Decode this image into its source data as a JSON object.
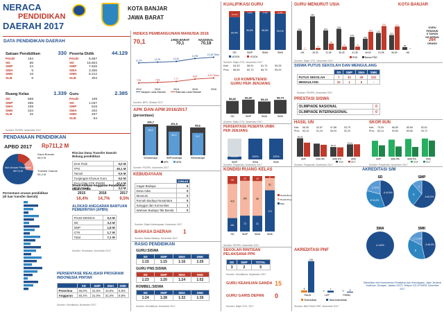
{
  "header": {
    "title_line1": "NERACA",
    "title_line2": "PENDIDIKAN",
    "title_line3": "DAERAH 2017",
    "region_line1": "KOTA BANJAR",
    "region_line2": "JAWA BARAT"
  },
  "colors": {
    "red": "#c0392b",
    "blue": "#1f4e8c",
    "dark": "#3d3d3d",
    "orange": "#e67e22",
    "light_blue": "#5b9bd5"
  },
  "data_pendidikan": {
    "title": "DATA PENDIDIKAN DAERAH",
    "satuan": {
      "label": "Satuan Pendidikan",
      "total": "330",
      "items": [
        {
          "k": "PAUD",
          "v": "194"
        },
        {
          "k": "SD",
          "v": "66"
        },
        {
          "k": "SMP",
          "v": "24"
        },
        {
          "k": "SMA",
          "v": "5"
        },
        {
          "k": "SMK",
          "v": "16"
        },
        {
          "k": "SLB",
          "v": "6"
        }
      ]
    },
    "peserta": {
      "label": "Peserta Didik",
      "total": "44.129",
      "items": [
        {
          "k": "PAUD",
          "v": "8.657"
        },
        {
          "k": "SD",
          "v": "15.604"
        },
        {
          "k": "SMP",
          "v": "7.626"
        },
        {
          "k": "SMA",
          "v": "3.306"
        },
        {
          "k": "SMK",
          "v": "8.212"
        },
        {
          "k": "SLB",
          "v": "304"
        }
      ]
    },
    "ruang": {
      "label": "Ruang Kelas",
      "total": "1.339",
      "items": [
        {
          "k": "SD",
          "v": "669"
        },
        {
          "k": "SMP",
          "v": "295"
        },
        {
          "k": "SMA",
          "v": "109"
        },
        {
          "k": "SMK",
          "v": "234"
        },
        {
          "k": "SLB",
          "v": "32"
        }
      ]
    },
    "guru": {
      "label": "Guru",
      "total": "2.385",
      "items": [
        {
          "k": "PAUD",
          "v": "109"
        },
        {
          "k": "SD",
          "v": "1.037"
        },
        {
          "k": "SMP",
          "v": "519"
        },
        {
          "k": "SMA",
          "v": "202"
        },
        {
          "k": "SMK",
          "v": "407"
        },
        {
          "k": "SLB",
          "v": "64"
        }
      ]
    },
    "source": "Sumber: PDSPK, November 2017"
  },
  "pendanaan": {
    "title": "PENDANAAN PENDIDIKAN",
    "apbd_label": "APBD 2017",
    "apbd_value": "Rp711,2 M",
    "donut_center": "Non Urusan Pendidikan",
    "donut_center_val": "557,9 M",
    "dana_bosnas_label": "Dana Bosnas",
    "dana_bosnas_val": "58,9 M",
    "transfer_label": "Transfer Daerah",
    "transfer_val": "94,4 M",
    "rincian_title": "Rincian Dana Transfer Daerah Bidang pendidikan",
    "rincian": [
      {
        "k": "DAK Fisik",
        "v": "0,0 M"
      },
      {
        "k": "TPG",
        "v": "40,1 M"
      },
      {
        "k": "Tamsil",
        "v": "0,5 M"
      },
      {
        "k": "Tunjangan Khusus Guru",
        "v": "0,0 M"
      },
      {
        "k": "DAU (Gaji GTK PNSD)",
        "v": "47,4 M"
      },
      {
        "k": "BOP PAUD",
        "v": "3,3 M"
      }
    ],
    "trend_title": "Trend Alokasi Anggaran Pendidikan dalam APBD",
    "trend_years": [
      "2015",
      "2016",
      "2017"
    ],
    "trend_vals": [
      "16,4%",
      "14,7%",
      "9,5%"
    ],
    "bantuan_title": "ALOKASI ANGGARAN BANTUAN PEMERINTAH (APBN)",
    "bantuan": [
      {
        "k": "PAUD-DIKMAS",
        "v": "0,3 M"
      },
      {
        "k": "SD",
        "v": "3,3 M"
      },
      {
        "k": "SMP",
        "v": "1,8 M"
      },
      {
        "k": "GTK",
        "v": "1,7 M"
      },
      {
        "k": "Total",
        "v": "7,1 M"
      }
    ],
    "persentase_title": "Persentase urusan pendidikan (di luar transfer daerah)",
    "source": "Sumber: Kemenkeu, November 2017"
  },
  "pip": {
    "title": "PERSENTASE REALISASI PROGRAM INDONESIA PINTAR",
    "cols": [
      "SD",
      "SMP",
      "SMA",
      "SMK"
    ],
    "rows": [
      {
        "k": "Penerima",
        "v": [
          "45,0%",
          "31,0%",
          "10,0%",
          "5,6%"
        ]
      },
      {
        "k": "Anggaran",
        "v": [
          "40,4%",
          "31,0%",
          "31,0%",
          "8,8%"
        ]
      }
    ],
    "source": "Sumber: Kemdikbud, November 2017"
  },
  "ipm": {
    "title": "INDEKS PEMBANGUNAN MANUSIA 2016",
    "value": "70,1",
    "jabar_label": "JAWA BARAT",
    "jabar_val": "70,1",
    "nasional_label": "NASIONAL",
    "nasional_val": "70,18",
    "years": [
      "2012",
      "2013",
      "2014",
      "2015",
      "2016"
    ],
    "hls": [
      12.15,
      12.29,
      12.42,
      12.95,
      13.18
    ],
    "hls_labels": [
      "12,15",
      "12,29",
      "12,42",
      "12,95",
      "13,18 Tahun"
    ],
    "rls": [
      7.59,
      7.66,
      7.77,
      8.06,
      8.19
    ],
    "rls_labels": [
      "7,59",
      "7,66",
      "7,77",
      "8,06",
      "8,19 Tahun"
    ],
    "legend_hls": "Harapan Lama Sekolah",
    "legend_rls": "Rata-rata Lama Sekolah",
    "source": "Sumber: BPS, Oktober 2017"
  },
  "apk": {
    "title": "APK DAN APM 2016/2017",
    "subtitle": "(persentase)",
    "cats": [
      "SD/sederajat",
      "SMP/sederajat",
      "SM/sederajat"
    ],
    "apk": [
      106.7,
      101.6,
      95.6
    ],
    "apm": [
      98.2,
      81.2,
      76.7
    ],
    "apk_labels": [
      "106,7",
      "101,6",
      "95,6"
    ],
    "apm_labels": [
      "98,2",
      "81,2",
      "76,7"
    ],
    "legend_apk": "APK",
    "legend_apm": "APM",
    "source": "Sumber: PDSPK, November 2017"
  },
  "kebudayaan": {
    "title": "KEBUDAYAAN",
    "rows": [
      {
        "k": "Cagar Budaya",
        "v": "6"
      },
      {
        "k": "Desa Adat",
        "v": "0"
      },
      {
        "k": "Museum",
        "v": "0"
      },
      {
        "k": "Rumah Budaya Nusantara",
        "v": "0"
      },
      {
        "k": "Sanggar dan Komunitas",
        "v": "1"
      },
      {
        "k": "Warisan Budaya Tak Benda",
        "v": "0"
      }
    ],
    "header": "JUMLAH",
    "source": "Sumber: Ditjen Kebudayaan, November 2017"
  },
  "bahasa": {
    "title": "BAHASA DAERAH",
    "value": "1",
    "source": "Sumber: Badan Bahasa, November 2017"
  },
  "rasio": {
    "title": "RASIO PENDIDIKAN",
    "guru_siswa_title": "GURU:SISWA",
    "cols": [
      "SD",
      "SMP",
      "SMA",
      "SMK"
    ],
    "guru_siswa": [
      "1:15",
      "1:15",
      "1:16",
      "1:20"
    ],
    "pns_title": "GURU PNS:SISWA",
    "pns": [
      "1:23",
      "1:20",
      "1:24",
      "1:52"
    ],
    "rombel_title": "ROMBEL:SISWA",
    "rombel": [
      "1:24",
      "1:28",
      "1:32",
      "1:30"
    ],
    "source": "Sumber: Kemdikbud, November 2017"
  },
  "kualifikasi": {
    "title": "KUALIFIKASI GURU",
    "cats": [
      "SD",
      "SMP",
      "SMA",
      "SMK"
    ],
    "s1_plus": [
      84.4,
      96.5,
      96.6,
      93.1
    ],
    "s1_minus": [
      15.6,
      3.5,
      3.4,
      6.9
    ],
    "s1_plus_labels": [
      "84,4%",
      "96,5%",
      "96,6%",
      "93,1%"
    ],
    "s1_minus_labels": [
      "15,6%",
      "3,5%",
      "3,4%",
      "6,9%"
    ],
    "legend_plus": "≥S1/D4",
    "legend_minus": "<S1/D4",
    "source": "Sumber: Ditjen GTK, November 2017"
  },
  "ukg": {
    "title": "UJI KOMPETENSI GURU PER JENJANG",
    "cats": [
      "SD",
      "SMP",
      "SMA",
      "SMK"
    ],
    "values": [
      56.82,
      60.3,
      55.19,
      59.74
    ],
    "labels": [
      "56,82",
      "60,30",
      "55,19",
      "59,74"
    ],
    "kab_label": "Kab.",
    "prov_label": "Prov.",
    "kab": [
      "54,33",
      "58,91",
      "61,74",
      "59,28"
    ],
    "prov": [
      "56,65",
      "60,70",
      "66,73",
      "59,29"
    ],
    "source": "Sumber: Ditjen GTK, November 2017"
  },
  "guru_usia": {
    "title": "GURU MENURUT USIA",
    "region": "KOTA BANJAR",
    "cats": [
      "<26",
      "26-30",
      "31-35",
      "36-40",
      "41-45",
      "46-50",
      "51-55",
      "56-60",
      ">60"
    ],
    "pns": [
      2,
      21,
      65,
      34,
      34,
      187,
      246,
      241,
      0
    ],
    "non_pns": [
      198,
      346,
      201,
      218,
      134,
      116,
      175,
      153,
      29
    ],
    "pns_labels": [
      "2",
      "21",
      "65",
      "34",
      "34",
      "187",
      "246",
      "241",
      "0"
    ],
    "non_pns_labels": [
      "198",
      "346",
      "201",
      "218",
      "134",
      "116",
      "175",
      "153",
      "29"
    ],
    "legend_pns": "PNS",
    "legend_non": "Bukan PNS",
    "note_line1": "GURU",
    "note_line2": "PENSIUN",
    "note_line3": "5 TAHUN",
    "note_line4": "KE DEPAN",
    "note_val": "264",
    "note_unit": "ORANG",
    "source": "Sumber: Ditjen GTK, November 2017"
  },
  "putus": {
    "title": "SISWA PUTUS SEKOLAH DAN MENGULANG",
    "cols": [
      "SD",
      "SMP",
      "SMA",
      "SMK"
    ],
    "rows": [
      {
        "k": "PUTUS SEKOLAH",
        "v": [
          "7",
          "31",
          "49",
          "231"
        ]
      },
      {
        "k": "MENGULANG",
        "v": [
          "31",
          "1",
          "6",
          "-"
        ]
      }
    ],
    "source": "Sumber: PDSPK, November 2017"
  },
  "prestasi": {
    "title": "PRESTASI SISWA",
    "rows": [
      {
        "k": "OLIMPIADE NASIONAL",
        "v": "0"
      },
      {
        "k": "OLIMPIADE INTERNASIONAL",
        "v": "0"
      }
    ]
  },
  "unbk": {
    "title": "PERSENTASE PESERTA UNBK PER JENJANG",
    "cats": [
      "SMP",
      "SMA",
      "SMK"
    ],
    "values": [
      13.3,
      100,
      100
    ],
    "labels": [
      "13,3%",
      "100%",
      "100%"
    ],
    "source": "Sumber: Puspendik, November 2017"
  },
  "hasil_un": {
    "title": "HASIL UN",
    "kab_label": "Kab.",
    "prov_label": "Prov.",
    "kab": [
      "56,95",
      "52,87",
      "47,88",
      "53,75"
    ],
    "prov": [
      "53,15",
      "51,24",
      "50,93",
      "52,20"
    ],
    "cats": [
      "SMP",
      "SMA IPA",
      "SMA IPS",
      "SMK"
    ],
    "y2016": [
      65.29,
      55.1,
      48.57,
      53.61
    ],
    "y2017": [
      56.95,
      52.87,
      47.88,
      53.75
    ],
    "labels_2016": [
      "65,29",
      "",
      "48,57",
      "53,61"
    ],
    "labels_2017": [
      "56,95",
      "52,87",
      "47,88",
      "53,75"
    ],
    "legend_2016": "2016",
    "legend_2017": "2017",
    "source": "Sumber: Puspendik, November 2017"
  },
  "skor_iiun": {
    "title": "SKOR IIUN",
    "kab_label": "Kab.",
    "prov_label": "Prov.",
    "kab": [
      "70,05",
      "66,89",
      "65,65",
      "82,61"
    ],
    "prov": [
      "83,14",
      "93,50",
      "89,80",
      "93,72"
    ],
    "cats": [
      "SMP",
      "SMA IPA",
      "SMA IPS",
      "SMK"
    ],
    "y2016": [
      82,
      85,
      87,
      88
    ],
    "y2017": [
      70.05,
      66.89,
      65.65,
      82.61
    ],
    "legend_2016": "2016",
    "legend_2017": "2017",
    "source": "Sumber: Puspendik, November 2017"
  },
  "kondisi": {
    "title": "KONDISI RUANG KELAS",
    "cats": [
      "SD",
      "SMP",
      "SMA",
      "SMK"
    ],
    "rusak_berat": [
      95,
      22,
      10,
      9
    ],
    "rusak_ringan": [
      410,
      160,
      68,
      51
    ],
    "baik": [
      161,
      73,
      31,
      174
    ],
    "rb_labels": [
      "95",
      "22",
      "10",
      "9"
    ],
    "rr_labels": [
      "410",
      "160",
      "68",
      "51"
    ],
    "baik_labels": [
      "161",
      "73",
      "31",
      "174"
    ],
    "legend": [
      "Rusak Berat",
      "Rusak Ringan",
      "Baik"
    ],
    "source": "Sumber: PDSPK, November 2017"
  },
  "ppk": {
    "title": "SEKOLAH RINTISAN PELAKSANA PPK",
    "cols": [
      "SD",
      "SMP",
      "TOTAL"
    ],
    "vals": [
      "3",
      "2",
      "5"
    ],
    "source": "Sumber: Kemdikbud, September 2017"
  },
  "keahlian": {
    "title": "GURU KEAHLIAN GANDA",
    "value": "15"
  },
  "garis_depan": {
    "title": "GURU GARIS DEPAN",
    "value": "0",
    "source": "Sumber: Ditjen GTK, 2017"
  },
  "pnf": {
    "title": "AKREDITASI PNF",
    "cats": [
      "PAUD",
      "LKP",
      "PKBM"
    ],
    "terakreditasi": [
      8,
      0,
      0
    ],
    "tidak": [
      119,
      7,
      3
    ],
    "labels_t": [
      "8",
      "0",
      "0"
    ],
    "labels_n": [
      "119",
      "7",
      "3"
    ],
    "legend_t": "Terakreditasi",
    "legend_n": "Tidak terakreditasi",
    "source": "Sumber: BAN PAUD PNF, November 2017"
  },
  "akreditasi": {
    "title": "AKREDITASI S/M",
    "charts": [
      {
        "name": "SD",
        "slices": [
          {
            "k": "A",
            "v": 44.6
          },
          {
            "k": "B",
            "v": 34.4
          },
          {
            "k": "C",
            "v": 21.0
          }
        ],
        "labels": [
          "A 44,6%",
          "B 34,4%",
          "C 21%"
        ]
      },
      {
        "name": "SMP",
        "slices": [
          {
            "k": "A",
            "v": 60.4
          },
          {
            "k": "B",
            "v": 28.2
          },
          {
            "k": "C",
            "v": 11.4
          }
        ],
        "labels": [
          "A 60,4%",
          "B",
          "C"
        ]
      },
      {
        "name": "SMA",
        "slices": [
          {
            "k": "A",
            "v": 100
          }
        ],
        "labels": [
          "A 100%"
        ]
      },
      {
        "name": "SMK",
        "slices": [
          {
            "k": "A",
            "v": 46.5
          },
          {
            "k": "B",
            "v": 36.0
          },
          {
            "k": "C",
            "v": 17.5
          }
        ],
        "labels": [
          "A 46,5%",
          "B",
          "C 17,5%"
        ]
      }
    ],
    "footer": "Diterbitkan oleh Kementerian Pendidikan dan Kebudayaan, Jalan Jenderal Sudirman, Senayan, Jakarta 10270, Telepon 021-5730405, Desember 2017"
  }
}
